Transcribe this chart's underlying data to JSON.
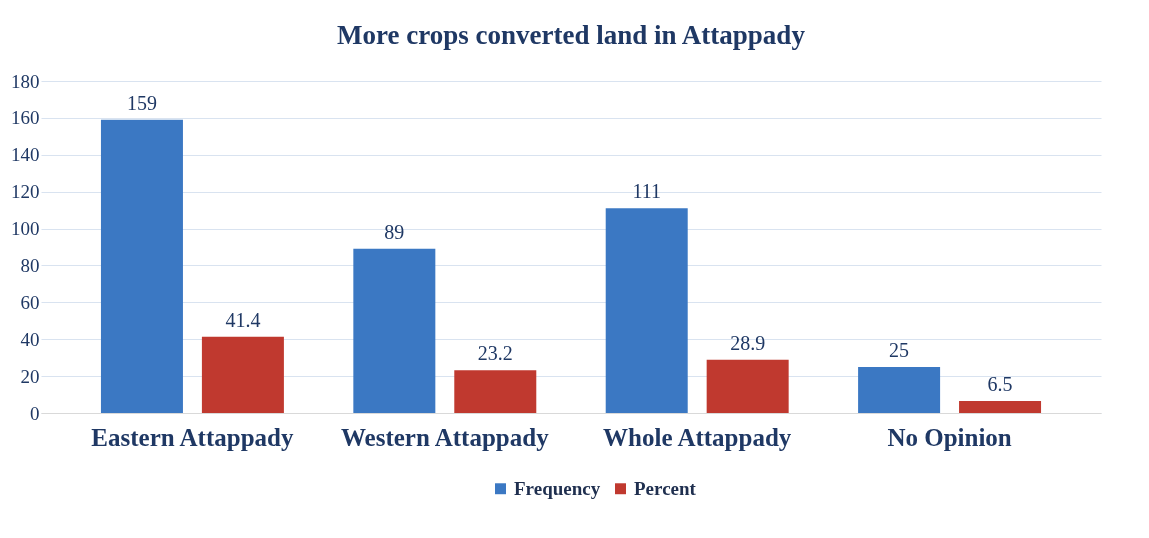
{
  "chart_data": {
    "type": "bar",
    "title": "More crops converted land in Attappady",
    "categories": [
      "Eastern Attappady",
      "Western Attappady",
      "Whole Attappady",
      "No Opinion"
    ],
    "series": [
      {
        "name": "Frequency",
        "color": "#3b78c3",
        "values": [
          159,
          89,
          111,
          25
        ]
      },
      {
        "name": "Percent",
        "color": "#c0392f",
        "values": [
          41.4,
          23.2,
          28.9,
          6.5
        ]
      }
    ],
    "ylim": [
      0,
      180
    ],
    "yticks": [
      0,
      20,
      40,
      60,
      80,
      100,
      120,
      140,
      160,
      180
    ],
    "grid": "y",
    "legend": "bottom",
    "data_labels": true
  }
}
